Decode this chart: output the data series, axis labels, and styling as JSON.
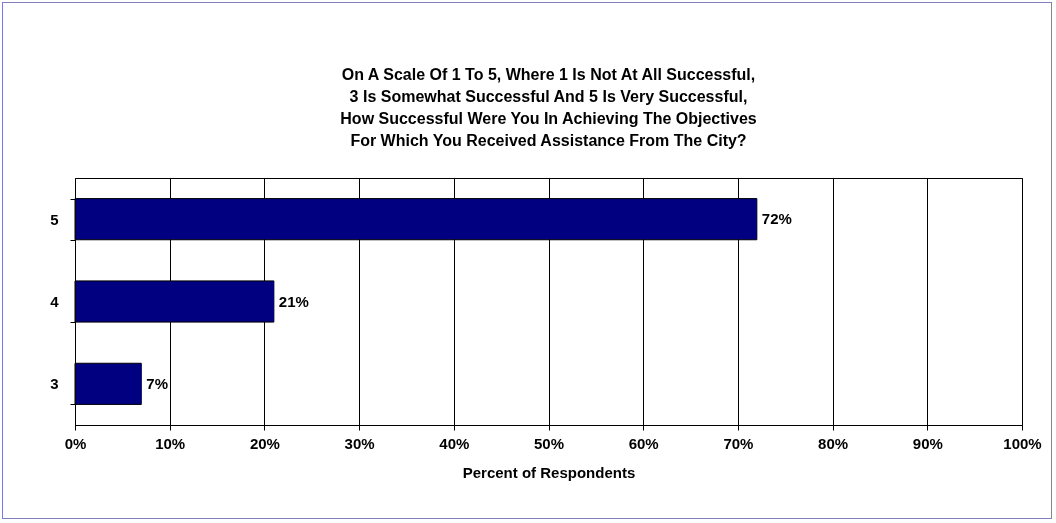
{
  "chart_data": {
    "type": "bar",
    "orientation": "horizontal",
    "title": "On A Scale Of 1 To 5, Where 1 Is Not At All Successful,\n3 Is Somewhat Successful And 5 Is Very Successful,\nHow Successful Were You In Achieving The Objectives\n For Which You Received Assistance From The City?",
    "categories": [
      "5",
      "4",
      "3"
    ],
    "values": [
      72,
      21,
      7
    ],
    "value_labels": [
      "72%",
      "21%",
      "7%"
    ],
    "color": "#000080",
    "xlabel": "Percent of Respondents",
    "xlim": [
      0,
      100
    ],
    "xticks": [
      {
        "value": 0,
        "label": "0%"
      },
      {
        "value": 10,
        "label": "10%"
      },
      {
        "value": 20,
        "label": "20%"
      },
      {
        "value": 30,
        "label": "30%"
      },
      {
        "value": 40,
        "label": "40%"
      },
      {
        "value": 50,
        "label": "50%"
      },
      {
        "value": 60,
        "label": "60%"
      },
      {
        "value": 70,
        "label": "70%"
      },
      {
        "value": 80,
        "label": "80%"
      },
      {
        "value": 90,
        "label": "90%"
      },
      {
        "value": 100,
        "label": "100%"
      }
    ],
    "grid": "x"
  }
}
